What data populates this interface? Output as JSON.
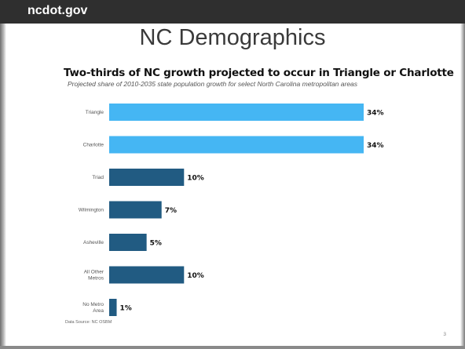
{
  "header": {
    "brand": "ncdot.gov"
  },
  "slide": {
    "title": "NC Demographics",
    "page_number": "3"
  },
  "colors": {
    "highlight": "#45b6f3",
    "default": "#215b82",
    "topbar": "#2f2f2f"
  },
  "chart_data": {
    "type": "bar",
    "orientation": "horizontal",
    "title": "Two-thirds of NC growth projected to occur in Triangle or Charlotte",
    "subtitle": "Projected share of 2010-2035 state population growth for select North Carolina metropolitan areas",
    "source": "Data Source: NC OSBM",
    "categories": [
      [
        "Triangle"
      ],
      [
        "Charlotte"
      ],
      [
        "Triad"
      ],
      [
        "Wilmington"
      ],
      [
        "Asheville"
      ],
      [
        "All Other",
        "Metros"
      ],
      [
        "No Metro",
        "Area"
      ]
    ],
    "values": [
      34,
      34,
      10,
      7,
      5,
      10,
      1
    ],
    "value_labels": [
      "34%",
      "34%",
      "10%",
      "7%",
      "5%",
      "10%",
      "1%"
    ],
    "highlighted": [
      true,
      true,
      false,
      false,
      false,
      false,
      false
    ],
    "unit": "%",
    "xlim": [
      0,
      34
    ],
    "grid": false,
    "legend": "none"
  }
}
